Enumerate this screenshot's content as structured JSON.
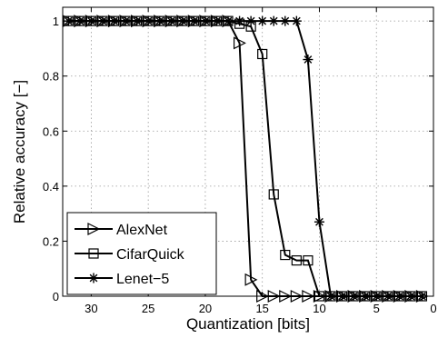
{
  "chart_data": {
    "type": "line",
    "title": "",
    "xlabel": "Quantization [bits]",
    "ylabel": "Relative accuracy [−]",
    "xlim": [
      32.5,
      0
    ],
    "ylim": [
      0,
      1.05
    ],
    "x_reversed": true,
    "xticks": [
      30,
      25,
      20,
      15,
      10,
      5,
      0
    ],
    "xtick_labels": [
      "30",
      "25",
      "20",
      "15",
      "10",
      "5",
      "0"
    ],
    "yticks": [
      0,
      0.2,
      0.4,
      0.6,
      0.8,
      1
    ],
    "ytick_labels": [
      "0",
      "0.2",
      "0.4",
      "0.6",
      "0.8",
      "1"
    ],
    "grid": true,
    "legend_position": "bottom-left",
    "series": [
      {
        "name": "AlexNet",
        "marker": "triangle-right",
        "x": [
          32,
          31,
          30,
          29,
          28,
          27,
          26,
          25,
          24,
          23,
          22,
          21,
          20,
          19,
          18,
          17,
          16,
          15,
          14,
          13,
          12,
          11,
          10,
          9,
          8,
          7,
          6,
          5,
          4,
          3,
          2,
          1
        ],
        "y": [
          1,
          1,
          1,
          1,
          1,
          1,
          1,
          1,
          1,
          1,
          1,
          1,
          1,
          1,
          1,
          0.92,
          0.06,
          0,
          0,
          0,
          0,
          0,
          0,
          0,
          0,
          0,
          0,
          0,
          0,
          0,
          0,
          0
        ]
      },
      {
        "name": "CifarQuick",
        "marker": "square",
        "x": [
          32,
          31,
          30,
          29,
          28,
          27,
          26,
          25,
          24,
          23,
          22,
          21,
          20,
          19,
          18,
          17,
          16,
          15,
          14,
          13,
          12,
          11,
          10,
          9,
          8,
          7,
          6,
          5,
          4,
          3,
          2,
          1
        ],
        "y": [
          1,
          1,
          1,
          1,
          1,
          1,
          1,
          1,
          1,
          1,
          1,
          1,
          1,
          1,
          1,
          0.99,
          0.98,
          0.88,
          0.37,
          0.15,
          0.13,
          0.13,
          0,
          0,
          0,
          0,
          0,
          0,
          0,
          0,
          0,
          0
        ]
      },
      {
        "name": "Lenet−5",
        "marker": "asterisk",
        "x": [
          32,
          31,
          30,
          29,
          28,
          27,
          26,
          25,
          24,
          23,
          22,
          21,
          20,
          19,
          18,
          17,
          16,
          15,
          14,
          13,
          12,
          11,
          10,
          9,
          8,
          7,
          6,
          5,
          4,
          3,
          2,
          1
        ],
        "y": [
          1,
          1,
          1,
          1,
          1,
          1,
          1,
          1,
          1,
          1,
          1,
          1,
          1,
          1,
          1,
          1,
          1,
          1,
          1,
          1,
          1,
          0.86,
          0.27,
          0,
          0,
          0,
          0,
          0,
          0,
          0,
          0,
          0
        ]
      }
    ]
  }
}
